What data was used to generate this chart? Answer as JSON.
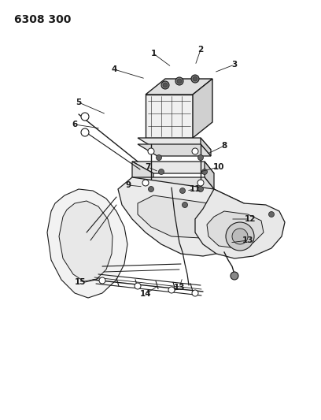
{
  "title": "6308 300",
  "bg_color": "#ffffff",
  "line_color": "#1a1a1a",
  "title_fontsize": 10,
  "label_fontsize": 7.5,
  "fig_width": 4.08,
  "fig_height": 5.33,
  "dpi": 100,
  "label_data": [
    [
      "1",
      195,
      68,
      218,
      85
    ],
    [
      "2",
      255,
      63,
      248,
      83
    ],
    [
      "3",
      298,
      82,
      272,
      92
    ],
    [
      "4",
      145,
      88,
      185,
      100
    ],
    [
      "5",
      100,
      130,
      135,
      145
    ],
    [
      "6",
      95,
      158,
      128,
      163
    ],
    [
      "7",
      188,
      212,
      202,
      218
    ],
    [
      "8",
      285,
      185,
      262,
      196
    ],
    [
      "9",
      163,
      235,
      182,
      237
    ],
    [
      "10",
      278,
      212,
      254,
      218
    ],
    [
      "11",
      248,
      240,
      237,
      242
    ],
    [
      "12",
      318,
      278,
      293,
      278
    ],
    [
      "13",
      315,
      305,
      292,
      308
    ],
    [
      "13",
      228,
      365,
      232,
      352
    ],
    [
      "14",
      185,
      373,
      202,
      362
    ],
    [
      "15",
      102,
      358,
      128,
      353
    ]
  ]
}
